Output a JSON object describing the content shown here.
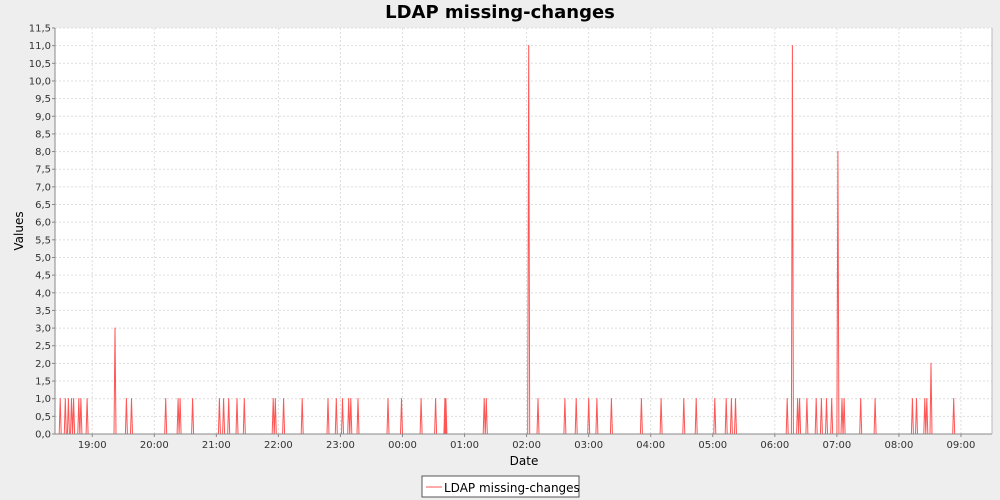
{
  "chart_data": {
    "type": "line",
    "title": "LDAP missing-changes",
    "xlabel": "Date",
    "ylabel": "Values",
    "x_axis": "time",
    "x_ticks": [
      "19:00",
      "20:00",
      "21:00",
      "22:00",
      "23:00",
      "00:00",
      "01:00",
      "02:00",
      "03:00",
      "04:00",
      "05:00",
      "06:00",
      "07:00",
      "08:00",
      "09:00"
    ],
    "y_ticks": [
      "0,0",
      "0,5",
      "1,0",
      "1,5",
      "2,0",
      "2,5",
      "3,0",
      "3,5",
      "4,0",
      "4,5",
      "5,0",
      "5,5",
      "6,0",
      "6,5",
      "7,0",
      "7,5",
      "8,0",
      "8,5",
      "9,0",
      "9,5",
      "10,0",
      "10,5",
      "11,0",
      "11,5"
    ],
    "ylim": [
      0,
      11.5
    ],
    "xlim": [
      "18:24",
      "09:30"
    ],
    "grid": true,
    "legend_position": "bottom",
    "colors": {
      "series": "#ff5555",
      "background": "#eeeeee",
      "plot_background": "#ffffff",
      "grid": "#dddddd"
    },
    "series": [
      {
        "name": "LDAP missing-changes",
        "points": [
          [
            "18:29",
            1
          ],
          [
            "18:34",
            1
          ],
          [
            "18:37",
            1
          ],
          [
            "18:40",
            1
          ],
          [
            "18:42",
            1
          ],
          [
            "18:47",
            1
          ],
          [
            "18:49",
            1
          ],
          [
            "18:55",
            1
          ],
          [
            "19:22",
            3
          ],
          [
            "19:33",
            1
          ],
          [
            "19:38",
            1
          ],
          [
            "20:11",
            1
          ],
          [
            "20:23",
            1
          ],
          [
            "20:25",
            1
          ],
          [
            "20:37",
            1
          ],
          [
            "21:03",
            1
          ],
          [
            "21:07",
            1
          ],
          [
            "21:12",
            1
          ],
          [
            "21:20",
            1
          ],
          [
            "21:27",
            1
          ],
          [
            "21:55",
            1
          ],
          [
            "21:57",
            1
          ],
          [
            "22:05",
            1
          ],
          [
            "22:23",
            1
          ],
          [
            "22:48",
            1
          ],
          [
            "22:56",
            1
          ],
          [
            "23:02",
            1
          ],
          [
            "23:08",
            1
          ],
          [
            "23:10",
            1
          ],
          [
            "23:17",
            1
          ],
          [
            "23:46",
            1
          ],
          [
            "23:59",
            1
          ],
          [
            "00:18",
            1
          ],
          [
            "00:32",
            1
          ],
          [
            "00:41",
            1
          ],
          [
            "00:42",
            1
          ],
          [
            "01:19",
            1
          ],
          [
            "01:21",
            1
          ],
          [
            "02:02",
            11
          ],
          [
            "02:11",
            1
          ],
          [
            "02:37",
            1
          ],
          [
            "02:48",
            1
          ],
          [
            "03:00",
            1
          ],
          [
            "03:08",
            1
          ],
          [
            "03:22",
            1
          ],
          [
            "03:51",
            1
          ],
          [
            "04:10",
            1
          ],
          [
            "04:32",
            1
          ],
          [
            "04:44",
            1
          ],
          [
            "05:02",
            1
          ],
          [
            "05:13",
            1
          ],
          [
            "05:18",
            1
          ],
          [
            "05:22",
            1
          ],
          [
            "06:12",
            1
          ],
          [
            "06:17",
            11
          ],
          [
            "06:22",
            1
          ],
          [
            "06:24",
            1
          ],
          [
            "06:31",
            1
          ],
          [
            "06:40",
            1
          ],
          [
            "06:45",
            1
          ],
          [
            "06:50",
            1
          ],
          [
            "06:55",
            1
          ],
          [
            "07:01",
            8
          ],
          [
            "07:05",
            1
          ],
          [
            "07:07",
            1
          ],
          [
            "07:23",
            1
          ],
          [
            "07:37",
            1
          ],
          [
            "08:13",
            1
          ],
          [
            "08:17",
            1
          ],
          [
            "08:25",
            1
          ],
          [
            "08:27",
            1
          ],
          [
            "08:31",
            2
          ],
          [
            "08:53",
            1
          ]
        ]
      }
    ]
  }
}
